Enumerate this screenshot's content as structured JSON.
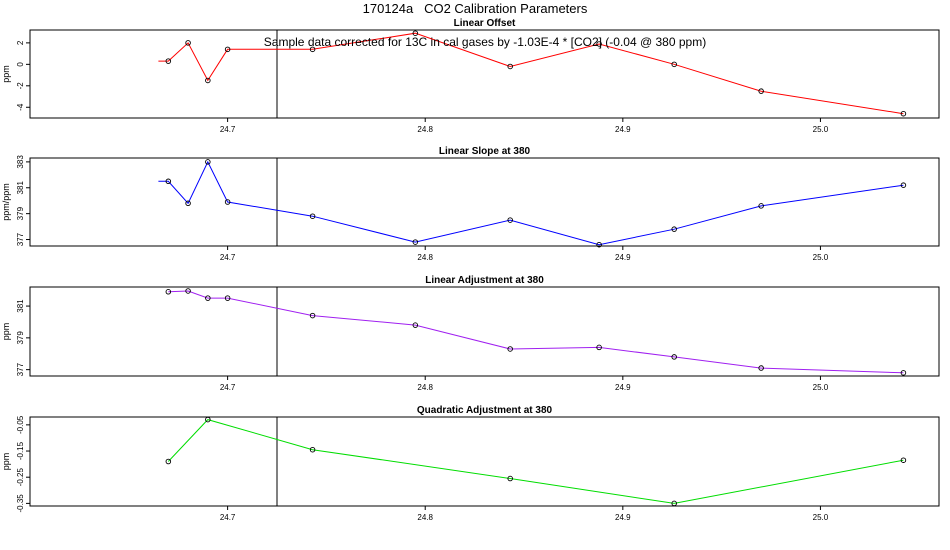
{
  "page_title": "170124a   CO2 Calibration Parameters",
  "colors": {
    "linear_offset": "#ff0000",
    "linear_slope": "#0000ff",
    "linear_adjustment": "#a020f0",
    "quadratic_adjustment": "#00dd00",
    "axis": "#000000",
    "marker_line": "#000000"
  },
  "chart_data": [
    {
      "type": "line",
      "title": "Linear Offset",
      "annotation": "Sample data corrected for 13C in cal gases by -1.03E-4 * [CO2] (-0.04 @ 380 ppm)",
      "xlabel": "",
      "ylabel": "ppm",
      "xlim": [
        24.6,
        25.06
      ],
      "ylim": [
        -5,
        3.2
      ],
      "x_ticks": [
        24.7,
        24.8,
        24.9,
        25.0
      ],
      "x_tick_labels": [
        "24.7",
        "24.8",
        "24.9",
        "25.0"
      ],
      "y_ticks": [
        2,
        0,
        -2,
        -4
      ],
      "y_tick_labels": [
        "2",
        "0",
        "-2",
        "-4"
      ],
      "vertical_marker_x": 24.725,
      "grid": false,
      "series": [
        {
          "x": [
            24.67,
            24.68,
            24.69,
            24.7,
            24.743,
            24.795,
            24.843,
            24.888,
            24.926,
            24.97,
            25.042
          ],
          "y": [
            0.3,
            2.0,
            -1.5,
            1.4,
            1.4,
            2.9,
            -0.2,
            1.9,
            0.0,
            -2.5,
            -4.6
          ]
        }
      ],
      "start_point": [
        24.665,
        0.3
      ]
    },
    {
      "type": "line",
      "title": "Linear Slope at 380",
      "xlabel": "",
      "ylabel": "ppm/ppm",
      "xlim": [
        24.6,
        25.06
      ],
      "ylim": [
        376.5,
        383.3
      ],
      "x_ticks": [
        24.7,
        24.8,
        24.9,
        25.0
      ],
      "x_tick_labels": [
        "24.7",
        "24.8",
        "24.9",
        "25.0"
      ],
      "y_ticks": [
        383,
        381,
        379,
        377
      ],
      "y_tick_labels": [
        "383",
        "381",
        "379",
        "377"
      ],
      "vertical_marker_x": 24.725,
      "grid": false,
      "series": [
        {
          "x": [
            24.67,
            24.68,
            24.69,
            24.7,
            24.743,
            24.795,
            24.843,
            24.888,
            24.926,
            24.97,
            25.042
          ],
          "y": [
            381.5,
            379.8,
            383.0,
            379.9,
            378.8,
            376.8,
            378.5,
            376.6,
            377.8,
            379.6,
            381.2
          ]
        }
      ],
      "start_point": [
        24.665,
        381.5
      ]
    },
    {
      "type": "line",
      "title": "Linear Adjustment at 380",
      "xlabel": "",
      "ylabel": "ppm",
      "xlim": [
        24.6,
        25.06
      ],
      "ylim": [
        376.6,
        382.2
      ],
      "x_ticks": [
        24.7,
        24.8,
        24.9,
        25.0
      ],
      "x_tick_labels": [
        "24.7",
        "24.8",
        "24.9",
        "25.0"
      ],
      "y_ticks": [
        381,
        379,
        377
      ],
      "y_tick_labels": [
        "381",
        "379",
        "377"
      ],
      "vertical_marker_x": 24.725,
      "grid": false,
      "series": [
        {
          "x": [
            24.67,
            24.68,
            24.69,
            24.7,
            24.743,
            24.795,
            24.843,
            24.888,
            24.926,
            24.97,
            25.042
          ],
          "y": [
            381.9,
            381.95,
            381.5,
            381.5,
            380.4,
            379.8,
            378.3,
            378.4,
            377.8,
            377.1,
            376.8
          ]
        }
      ]
    },
    {
      "type": "line",
      "title": "Quadratic Adjustment at 380",
      "xlabel": "",
      "ylabel": "ppm",
      "xlim": [
        24.6,
        25.06
      ],
      "ylim": [
        -0.36,
        -0.02
      ],
      "x_ticks": [
        24.7,
        24.8,
        24.9,
        25.0
      ],
      "x_tick_labels": [
        "24.7",
        "24.8",
        "24.9",
        "25.0"
      ],
      "y_ticks": [
        -0.05,
        -0.15,
        -0.25,
        -0.35
      ],
      "y_tick_labels": [
        "-0.05",
        "-0.15",
        "-0.25",
        "-0.35"
      ],
      "vertical_marker_x": 24.725,
      "grid": false,
      "series": [
        {
          "x": [
            24.67,
            24.69,
            24.743,
            24.843,
            24.926,
            25.042
          ],
          "y": [
            -0.19,
            -0.03,
            -0.145,
            -0.255,
            -0.35,
            -0.185
          ]
        }
      ]
    }
  ]
}
